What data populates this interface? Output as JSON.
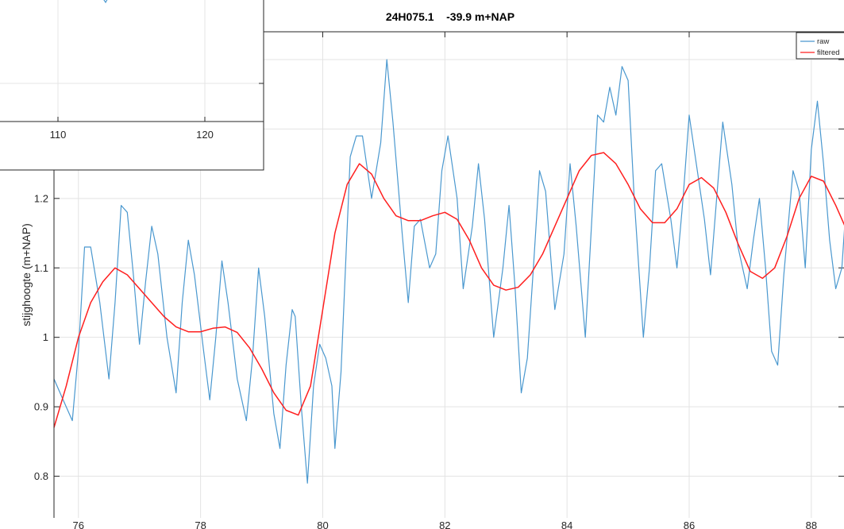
{
  "chart_data": [
    {
      "type": "line",
      "title": "24H075.1    -39.9 m+NAP",
      "xlabel": "",
      "ylabel": "stijghoogte (m+NAP)",
      "xlim": [
        75.6,
        88.6
      ],
      "ylim": [
        0.74,
        1.44
      ],
      "x_ticks": [
        "76",
        "78",
        "80",
        "82",
        "84",
        "86",
        "88"
      ],
      "y_ticks": [
        "0.8",
        "0.9",
        "1",
        "1.1",
        "1.2"
      ],
      "grid": true,
      "legend_position": "top-right",
      "colors": {
        "raw": "#4a98cf",
        "filtered": "#ff1f1f"
      },
      "series": [
        {
          "name": "raw",
          "points": [
            [
              75.6,
              0.94
            ],
            [
              75.75,
              0.91
            ],
            [
              75.9,
              0.88
            ],
            [
              76.0,
              0.98
            ],
            [
              76.1,
              1.13
            ],
            [
              76.2,
              1.13
            ],
            [
              76.35,
              1.05
            ],
            [
              76.5,
              0.94
            ],
            [
              76.6,
              1.05
            ],
            [
              76.7,
              1.19
            ],
            [
              76.8,
              1.18
            ],
            [
              76.9,
              1.09
            ],
            [
              77.0,
              0.99
            ],
            [
              77.1,
              1.08
            ],
            [
              77.2,
              1.16
            ],
            [
              77.3,
              1.12
            ],
            [
              77.45,
              1.0
            ],
            [
              77.6,
              0.92
            ],
            [
              77.7,
              1.05
            ],
            [
              77.8,
              1.14
            ],
            [
              77.9,
              1.09
            ],
            [
              78.05,
              0.98
            ],
            [
              78.15,
              0.91
            ],
            [
              78.25,
              1.0
            ],
            [
              78.35,
              1.11
            ],
            [
              78.45,
              1.05
            ],
            [
              78.6,
              0.94
            ],
            [
              78.75,
              0.88
            ],
            [
              78.85,
              0.97
            ],
            [
              78.95,
              1.1
            ],
            [
              79.05,
              1.03
            ],
            [
              79.2,
              0.89
            ],
            [
              79.3,
              0.84
            ],
            [
              79.4,
              0.96
            ],
            [
              79.5,
              1.04
            ],
            [
              79.55,
              1.03
            ],
            [
              79.65,
              0.9
            ],
            [
              79.75,
              0.79
            ],
            [
              79.85,
              0.93
            ],
            [
              79.95,
              0.99
            ],
            [
              80.05,
              0.97
            ],
            [
              80.15,
              0.93
            ],
            [
              80.2,
              0.84
            ],
            [
              80.3,
              0.95
            ],
            [
              80.45,
              1.26
            ],
            [
              80.55,
              1.29
            ],
            [
              80.65,
              1.29
            ],
            [
              80.8,
              1.2
            ],
            [
              80.95,
              1.28
            ],
            [
              81.05,
              1.4
            ],
            [
              81.15,
              1.31
            ],
            [
              81.3,
              1.15
            ],
            [
              81.4,
              1.05
            ],
            [
              81.5,
              1.16
            ],
            [
              81.6,
              1.17
            ],
            [
              81.75,
              1.1
            ],
            [
              81.85,
              1.12
            ],
            [
              81.95,
              1.24
            ],
            [
              82.05,
              1.29
            ],
            [
              82.2,
              1.2
            ],
            [
              82.3,
              1.07
            ],
            [
              82.45,
              1.16
            ],
            [
              82.55,
              1.25
            ],
            [
              82.65,
              1.17
            ],
            [
              82.8,
              1.0
            ],
            [
              82.95,
              1.1
            ],
            [
              83.05,
              1.19
            ],
            [
              83.15,
              1.07
            ],
            [
              83.25,
              0.92
            ],
            [
              83.35,
              0.97
            ],
            [
              83.45,
              1.1
            ],
            [
              83.55,
              1.24
            ],
            [
              83.65,
              1.21
            ],
            [
              83.8,
              1.04
            ],
            [
              83.95,
              1.12
            ],
            [
              84.05,
              1.25
            ],
            [
              84.15,
              1.16
            ],
            [
              84.3,
              1.0
            ],
            [
              84.4,
              1.16
            ],
            [
              84.5,
              1.32
            ],
            [
              84.6,
              1.31
            ],
            [
              84.7,
              1.36
            ],
            [
              84.8,
              1.32
            ],
            [
              84.9,
              1.39
            ],
            [
              85.0,
              1.37
            ],
            [
              85.1,
              1.2
            ],
            [
              85.25,
              1.0
            ],
            [
              85.35,
              1.1
            ],
            [
              85.45,
              1.24
            ],
            [
              85.55,
              1.25
            ],
            [
              85.7,
              1.17
            ],
            [
              85.8,
              1.1
            ],
            [
              85.9,
              1.2
            ],
            [
              86.0,
              1.32
            ],
            [
              86.1,
              1.26
            ],
            [
              86.25,
              1.17
            ],
            [
              86.35,
              1.09
            ],
            [
              86.45,
              1.2
            ],
            [
              86.55,
              1.31
            ],
            [
              86.7,
              1.22
            ],
            [
              86.8,
              1.13
            ],
            [
              86.95,
              1.07
            ],
            [
              87.05,
              1.14
            ],
            [
              87.15,
              1.2
            ],
            [
              87.25,
              1.1
            ],
            [
              87.35,
              0.98
            ],
            [
              87.45,
              0.96
            ],
            [
              87.55,
              1.09
            ],
            [
              87.7,
              1.24
            ],
            [
              87.8,
              1.21
            ],
            [
              87.9,
              1.1
            ],
            [
              88.0,
              1.27
            ],
            [
              88.1,
              1.34
            ],
            [
              88.2,
              1.25
            ],
            [
              88.3,
              1.14
            ],
            [
              88.4,
              1.07
            ],
            [
              88.5,
              1.1
            ],
            [
              88.6,
              1.23
            ]
          ]
        },
        {
          "name": "filtered",
          "points": [
            [
              75.6,
              0.87
            ],
            [
              75.8,
              0.93
            ],
            [
              76.0,
              1.0
            ],
            [
              76.2,
              1.05
            ],
            [
              76.4,
              1.08
            ],
            [
              76.6,
              1.1
            ],
            [
              76.8,
              1.09
            ],
            [
              77.0,
              1.07
            ],
            [
              77.2,
              1.05
            ],
            [
              77.4,
              1.03
            ],
            [
              77.6,
              1.015
            ],
            [
              77.8,
              1.008
            ],
            [
              78.0,
              1.008
            ],
            [
              78.2,
              1.013
            ],
            [
              78.4,
              1.015
            ],
            [
              78.6,
              1.007
            ],
            [
              78.8,
              0.985
            ],
            [
              79.0,
              0.955
            ],
            [
              79.2,
              0.92
            ],
            [
              79.4,
              0.895
            ],
            [
              79.6,
              0.888
            ],
            [
              79.8,
              0.93
            ],
            [
              80.0,
              1.04
            ],
            [
              80.2,
              1.15
            ],
            [
              80.4,
              1.22
            ],
            [
              80.6,
              1.25
            ],
            [
              80.8,
              1.235
            ],
            [
              81.0,
              1.2
            ],
            [
              81.2,
              1.175
            ],
            [
              81.4,
              1.168
            ],
            [
              81.6,
              1.168
            ],
            [
              81.8,
              1.175
            ],
            [
              82.0,
              1.18
            ],
            [
              82.2,
              1.17
            ],
            [
              82.4,
              1.14
            ],
            [
              82.6,
              1.1
            ],
            [
              82.8,
              1.075
            ],
            [
              83.0,
              1.068
            ],
            [
              83.2,
              1.072
            ],
            [
              83.4,
              1.09
            ],
            [
              83.6,
              1.12
            ],
            [
              83.8,
              1.16
            ],
            [
              84.0,
              1.2
            ],
            [
              84.2,
              1.24
            ],
            [
              84.4,
              1.262
            ],
            [
              84.6,
              1.266
            ],
            [
              84.8,
              1.25
            ],
            [
              85.0,
              1.22
            ],
            [
              85.2,
              1.185
            ],
            [
              85.4,
              1.165
            ],
            [
              85.6,
              1.165
            ],
            [
              85.8,
              1.185
            ],
            [
              86.0,
              1.22
            ],
            [
              86.2,
              1.23
            ],
            [
              86.4,
              1.215
            ],
            [
              86.6,
              1.18
            ],
            [
              86.8,
              1.135
            ],
            [
              87.0,
              1.095
            ],
            [
              87.2,
              1.085
            ],
            [
              87.4,
              1.1
            ],
            [
              87.6,
              1.145
            ],
            [
              87.8,
              1.2
            ],
            [
              88.0,
              1.232
            ],
            [
              88.2,
              1.225
            ],
            [
              88.4,
              1.19
            ],
            [
              88.6,
              1.15
            ]
          ]
        }
      ]
    },
    {
      "type": "line",
      "title": "",
      "xlabel": "",
      "ylabel": "",
      "x_ticks": [
        "110",
        "120"
      ],
      "grid": true,
      "series": []
    }
  ]
}
